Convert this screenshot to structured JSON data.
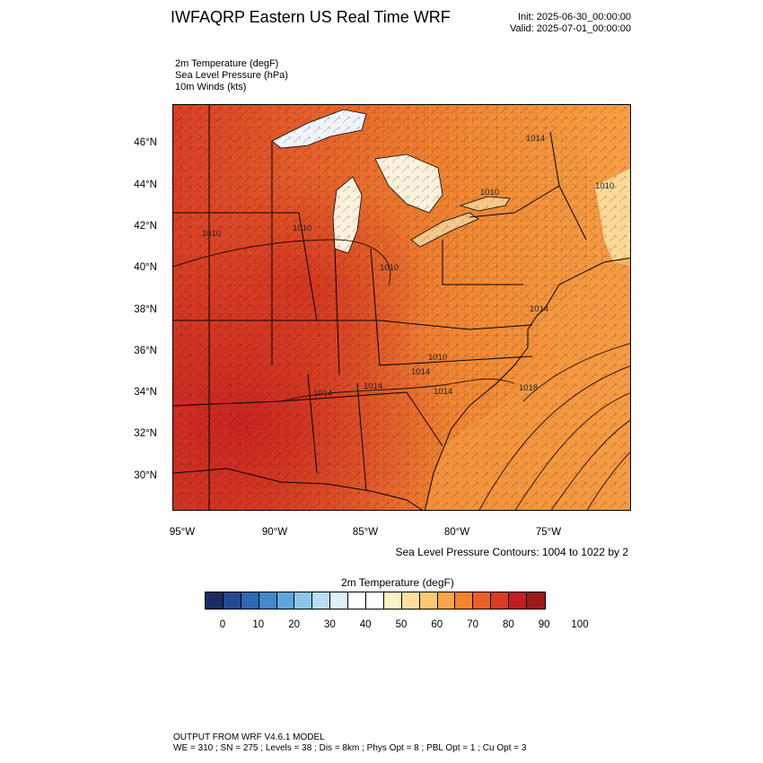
{
  "header": {
    "title": "IWFAQRP Eastern US Real Time WRF",
    "init": "Init: 2025-06-30_00:00:00",
    "valid": "Valid: 2025-07-01_00:00:00"
  },
  "fields": [
    "2m Temperature   (degF)",
    "Sea Level Pressure   (hPa)",
    "10m Winds   (kts)"
  ],
  "map": {
    "lat_labels": [
      "46°N",
      "44°N",
      "42°N",
      "40°N",
      "38°N",
      "36°N",
      "34°N",
      "32°N",
      "30°N"
    ],
    "lon_labels": [
      "95°W",
      "90°W",
      "85°W",
      "80°W",
      "75°W"
    ],
    "pressure_labels": [
      "1010",
      "1010",
      "1010",
      "1014",
      "1010",
      "1010",
      "1010",
      "1014",
      "1014",
      "1014",
      "1014",
      "1018",
      "1014"
    ]
  },
  "contour_note": "Sea Level Pressure Contours: 1004 to 1022 by 2",
  "colorbar": {
    "title": "2m Temperature  (degF)",
    "labels": [
      "0",
      "10",
      "20",
      "30",
      "40",
      "50",
      "60",
      "70",
      "80",
      "90",
      "100"
    ],
    "colors": [
      "#1a2d63",
      "#23498f",
      "#2f68b3",
      "#4488c8",
      "#5da6dc",
      "#8cc5ea",
      "#b8def3",
      "#ddeff9",
      "#ffffff",
      "#ffffff",
      "#fdf1c9",
      "#fde0a0",
      "#fdc874",
      "#f9a54a",
      "#f3842e",
      "#e95f28",
      "#d93a22",
      "#bf1f20",
      "#9b1a1a"
    ]
  },
  "footer": {
    "line1": "OUTPUT FROM WRF V4.6.1 MODEL",
    "line2": "WE = 310 ; SN = 275 ; Levels = 38 ; Dis = 8km ; Phys Opt = 8 ; PBL Opt = 1 ; Cu Opt = 3"
  }
}
